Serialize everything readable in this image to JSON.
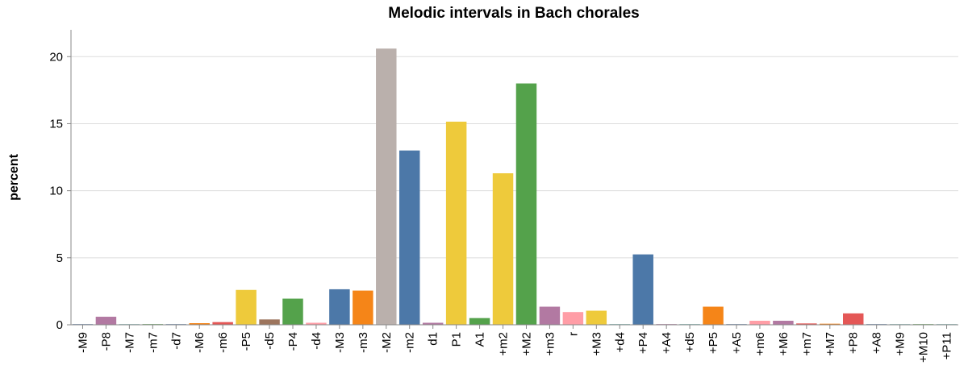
{
  "chart_data": {
    "type": "bar",
    "title": "Melodic intervals in Bach chorales",
    "xlabel": "",
    "ylabel": "percent",
    "ylim": [
      0,
      22
    ],
    "yticks": [
      0,
      5,
      10,
      15,
      20
    ],
    "grid": true,
    "categories": [
      "-M9",
      "-P8",
      "-M7",
      "-m7",
      "-d7",
      "-M6",
      "-m6",
      "-P5",
      "-d5",
      "-P4",
      "-d4",
      "-M3",
      "-m3",
      "-M2",
      "-m2",
      "d1",
      "P1",
      "A1",
      "+m2",
      "+M2",
      "+m3",
      "r",
      "+M3",
      "+d4",
      "+P4",
      "+A4",
      "+d5",
      "+P5",
      "+A5",
      "+m6",
      "+M6",
      "+m7",
      "+M7",
      "+P8",
      "+A8",
      "+M9",
      "+M10",
      "+P11"
    ],
    "values": [
      0.02,
      0.6,
      0.02,
      0.05,
      0.03,
      0.12,
      0.2,
      2.6,
      0.4,
      1.95,
      0.15,
      2.65,
      2.55,
      20.6,
      13.0,
      0.15,
      15.15,
      0.5,
      11.3,
      18.0,
      1.35,
      0.95,
      1.05,
      0.05,
      5.25,
      0.05,
      0.05,
      1.35,
      0.02,
      0.3,
      0.3,
      0.1,
      0.08,
      0.85,
      0.02,
      0.02,
      0.02,
      0.02
    ],
    "colors": [
      "#4c78a8",
      "#b279a2",
      "#72b7b2",
      "#54a24b",
      "#4c78a8",
      "#f58518",
      "#e45756",
      "#eeca3b",
      "#9d755d",
      "#54a24b",
      "#ff9da6",
      "#4c78a8",
      "#f58518",
      "#bab0ac",
      "#4c78a8",
      "#b279a2",
      "#eeca3b",
      "#54a24b",
      "#eeca3b",
      "#54a24b",
      "#b279a2",
      "#ff9da6",
      "#eeca3b",
      "#72b7b2",
      "#4c78a8",
      "#b279a2",
      "#72b7b2",
      "#f58518",
      "#4c78a8",
      "#ff9da6",
      "#b279a2",
      "#e45756",
      "#f58518",
      "#e45756",
      "#4c78a8",
      "#72b7b2",
      "#54a24b",
      "#72b7b2"
    ]
  }
}
